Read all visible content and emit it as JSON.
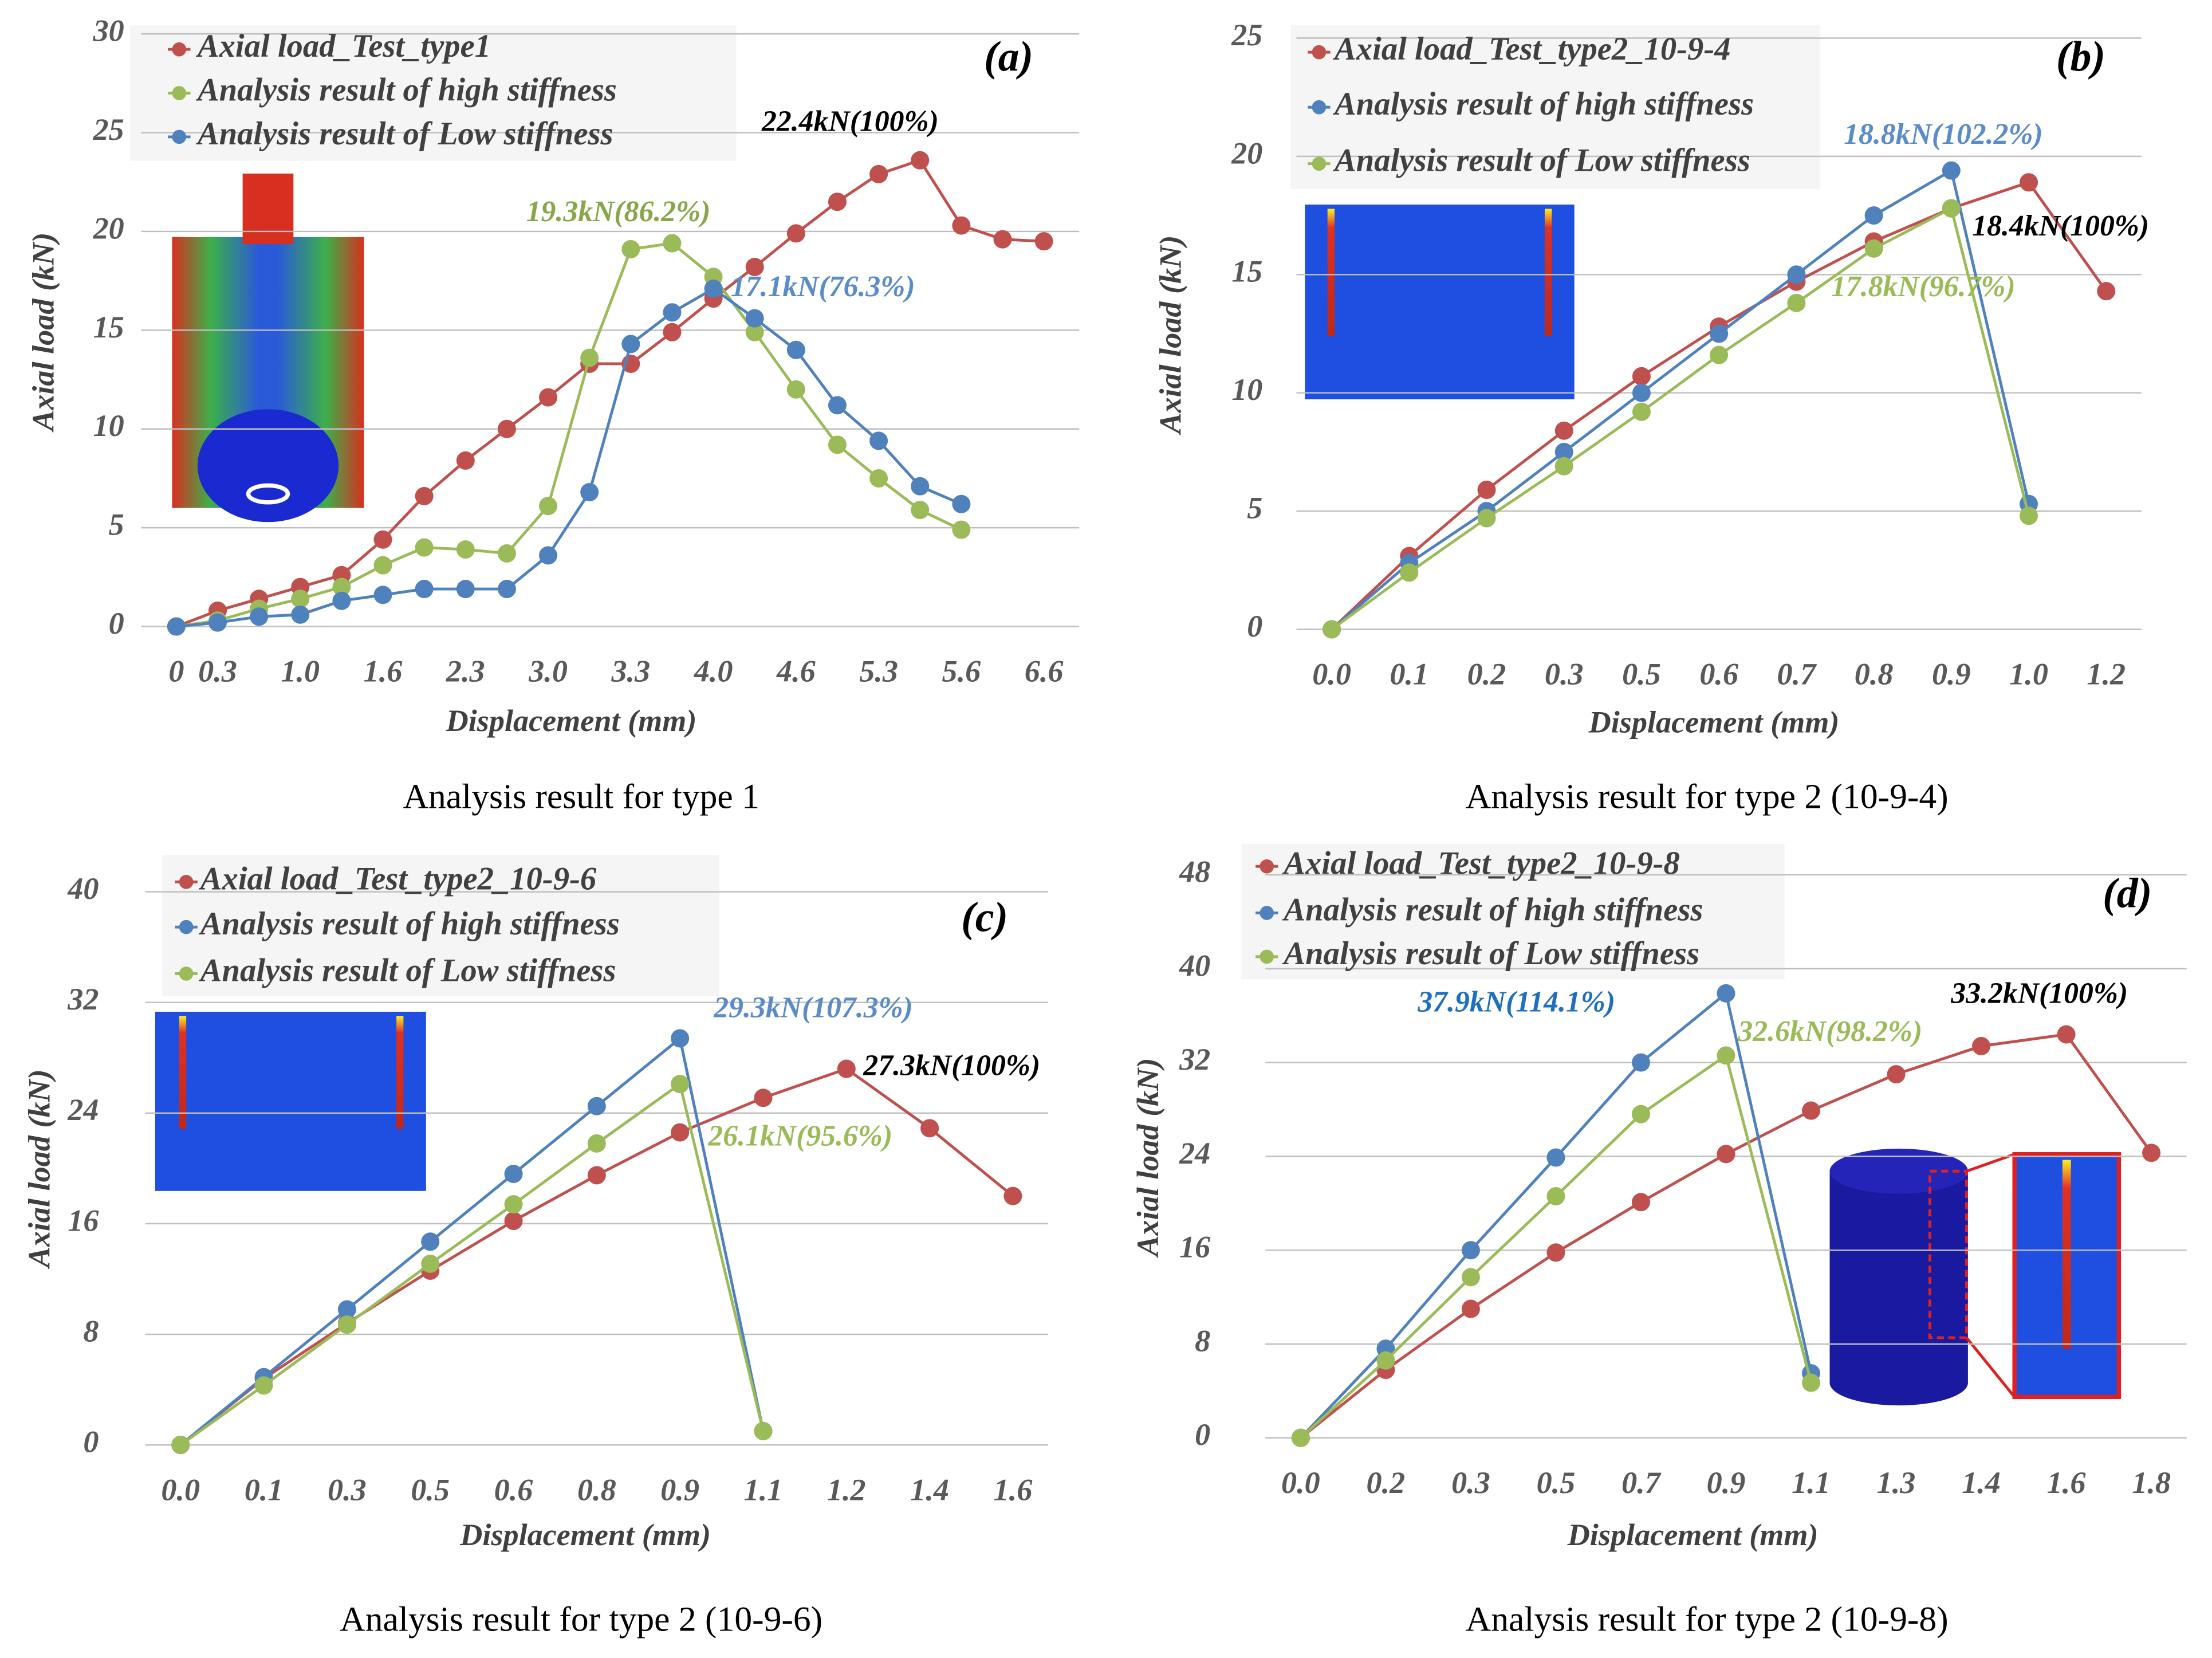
{
  "chart_data": [
    {
      "type": "line",
      "panel_label": "(a)",
      "caption": "Analysis result for type 1",
      "xlabel": "Displacement (mm)",
      "ylabel": "Axial load (kN)",
      "grid": true,
      "categories": [
        "0",
        "0.3",
        null,
        "1.0",
        null,
        "1.6",
        null,
        "2.3",
        null,
        "3.0",
        null,
        "3.3",
        null,
        "4.0",
        null,
        "4.6",
        null,
        "5.3",
        null,
        "5.6",
        null,
        "6.6"
      ],
      "ylim": [
        0,
        30
      ],
      "yticks": [
        0,
        5,
        10,
        15,
        20,
        25,
        30
      ],
      "series": [
        {
          "name": "Axial load_Test_type1",
          "color": "#c0504d",
          "values": [
            0,
            0.8,
            1.4,
            2.0,
            2.6,
            4.4,
            6.6,
            8.4,
            10.0,
            11.6,
            13.3,
            13.3,
            14.9,
            16.6,
            18.2,
            19.9,
            21.5,
            22.9,
            23.6,
            20.3,
            19.6,
            19.5
          ]
        },
        {
          "name": "Analysis result of high stiffness",
          "color": "#9bbb59",
          "values": [
            0,
            0.3,
            0.9,
            1.4,
            2.0,
            3.1,
            4.0,
            3.9,
            3.7,
            6.1,
            13.6,
            19.1,
            19.4,
            17.7,
            14.9,
            12.0,
            9.2,
            7.5,
            5.9,
            4.9,
            null,
            null
          ]
        },
        {
          "name": "Analysis result of Low stiffness",
          "color": "#4f81bd",
          "values": [
            0,
            0.2,
            0.5,
            0.6,
            1.3,
            1.6,
            1.9,
            1.9,
            1.9,
            3.6,
            6.8,
            14.3,
            15.9,
            17.1,
            15.6,
            14.0,
            11.2,
            9.4,
            7.1,
            6.2,
            null,
            null
          ]
        }
      ],
      "annotations": [
        {
          "text": "22.4kN(100%)",
          "color": "#000000"
        },
        {
          "text": "19.3kN(86.2%)",
          "color": "#8aa64a"
        },
        {
          "text": "17.1kN(76.3%)",
          "color": "#5b8cc7"
        }
      ]
    },
    {
      "type": "line",
      "panel_label": "(b)",
      "caption": "Analysis result for type 2 (10-9-4)",
      "xlabel": "Displacement (mm)",
      "ylabel": "Axial load (kN)",
      "grid": true,
      "categories": [
        "0.0",
        "0.1",
        "0.2",
        "0.3",
        "0.5",
        "0.6",
        "0.7",
        "0.8",
        "0.9",
        "1.0",
        "1.2"
      ],
      "ylim": [
        0,
        25
      ],
      "yticks": [
        0,
        5,
        10,
        15,
        20,
        25
      ],
      "series": [
        {
          "name": "Axial load_Test_type2_10-9-4",
          "color": "#c0504d",
          "values": [
            0,
            3.1,
            5.9,
            8.4,
            10.7,
            12.8,
            14.7,
            16.4,
            17.8,
            18.9,
            14.3
          ]
        },
        {
          "name": "Analysis result of high stiffness",
          "color": "#4f81bd",
          "values": [
            0,
            2.8,
            5.0,
            7.5,
            10.0,
            12.5,
            15.0,
            17.5,
            19.4,
            5.3,
            null
          ]
        },
        {
          "name": "Analysis result of Low stiffness",
          "color": "#9bbb59",
          "values": [
            0,
            2.4,
            4.7,
            6.9,
            9.2,
            11.6,
            13.8,
            16.1,
            17.8,
            4.8,
            null
          ]
        }
      ],
      "annotations": [
        {
          "text": "18.8kN(102.2%)",
          "color": "#5b8cc7"
        },
        {
          "text": "18.4kN(100%)",
          "color": "#000000"
        },
        {
          "text": "17.8kN(96.7%)",
          "color": "#9bbb59"
        }
      ]
    },
    {
      "type": "line",
      "panel_label": "(c)",
      "caption": "Analysis result for type 2 (10-9-6)",
      "xlabel": "Displacement (mm)",
      "ylabel": "Axial load (kN)",
      "grid": true,
      "categories": [
        "0.0",
        "0.1",
        "0.3",
        "0.5",
        "0.6",
        "0.8",
        "0.9",
        "1.1",
        "1.2",
        "1.4",
        "1.6"
      ],
      "ylim": [
        0,
        40
      ],
      "yticks": [
        0,
        8,
        16,
        24,
        32,
        40
      ],
      "series": [
        {
          "name": "Axial load_Test_type2_10-9-6",
          "color": "#c0504d",
          "values": [
            0,
            4.8,
            8.8,
            12.6,
            16.2,
            19.5,
            22.6,
            25.1,
            27.2,
            22.9,
            18.0
          ]
        },
        {
          "name": "Analysis result of high stiffness",
          "color": "#4f81bd",
          "values": [
            0,
            4.9,
            9.8,
            14.7,
            19.6,
            24.5,
            29.4,
            1.0,
            null,
            null,
            null
          ]
        },
        {
          "name": "Analysis result of Low stiffness",
          "color": "#9bbb59",
          "values": [
            0,
            4.3,
            8.7,
            13.1,
            17.4,
            21.8,
            26.1,
            1.0,
            null,
            null,
            null
          ]
        }
      ],
      "annotations": [
        {
          "text": "29.3kN(107.3%)",
          "color": "#5b8cc7"
        },
        {
          "text": "27.3kN(100%)",
          "color": "#000000"
        },
        {
          "text": "26.1kN(95.6%)",
          "color": "#9bbb59"
        }
      ]
    },
    {
      "type": "line",
      "panel_label": "(d)",
      "caption": "Analysis result for type 2 (10-9-8)",
      "xlabel": "Displacement (mm)",
      "ylabel": "Axial load (kN)",
      "grid": true,
      "categories": [
        "0.0",
        "0.2",
        "0.3",
        "0.5",
        "0.7",
        "0.9",
        "1.1",
        "1.3",
        "1.4",
        "1.6",
        "1.8"
      ],
      "ylim": [
        0,
        48
      ],
      "yticks": [
        0,
        8,
        16,
        24,
        32,
        40,
        48
      ],
      "series": [
        {
          "name": "Axial load_Test_type2_10-9-8",
          "color": "#c0504d",
          "values": [
            0,
            5.8,
            11.0,
            15.8,
            20.1,
            24.2,
            27.9,
            31.0,
            33.4,
            34.4,
            24.3
          ]
        },
        {
          "name": "Analysis result of high stiffness",
          "color": "#4f81bd",
          "values": [
            0,
            7.6,
            16.0,
            23.9,
            32.0,
            37.9,
            5.5,
            null,
            null,
            null,
            null
          ]
        },
        {
          "name": "Analysis result of Low stiffness",
          "color": "#9bbb59",
          "values": [
            0,
            6.6,
            13.7,
            20.6,
            27.6,
            32.6,
            4.7,
            null,
            null,
            null,
            null
          ]
        }
      ],
      "annotations": [
        {
          "text": "37.9kN(114.1%)",
          "color": "#1f6fbf"
        },
        {
          "text": "32.6kN(98.2%)",
          "color": "#9bbb59"
        },
        {
          "text": "33.2kN(100%)",
          "color": "#000000"
        }
      ]
    }
  ]
}
